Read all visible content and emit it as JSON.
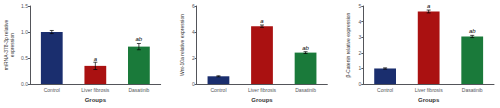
{
  "chart_data": [
    {
      "type": "bar",
      "ylabel": "miRNA-378-3p relative\nexpression",
      "xlabel": "Groups",
      "categories": [
        "Control",
        "Liver fibrosis",
        "Dasatinib"
      ],
      "values": [
        1.0,
        0.35,
        0.72
      ],
      "errors": [
        0.03,
        0.07,
        0.06
      ],
      "colors": [
        "#1a2e6e",
        "#aa1111",
        "#1a7a3a"
      ],
      "ylim": [
        0.0,
        1.5
      ],
      "yticks": [
        {
          "value": 0,
          "label": "0.0"
        },
        0.5,
        {
          "value": 1,
          "label": "1.0"
        },
        1.5
      ],
      "annotations": [
        {
          "text": "a",
          "x": "Liver fibrosis",
          "y": 0.43
        },
        {
          "text": "ab",
          "x": "Dasatinib",
          "y": 0.8
        }
      ],
      "grid": false
    },
    {
      "type": "bar",
      "ylabel": "Wnt-10a relative expression",
      "xlabel": "Groups",
      "categories": [
        "Control",
        "Liver fibrosis",
        "Dasatinib"
      ],
      "values": [
        0.6,
        4.45,
        2.42
      ],
      "errors": [
        0.04,
        0.09,
        0.07
      ],
      "colors": [
        "#1a2e6e",
        "#aa1111",
        "#1a7a3a"
      ],
      "ylim": [
        0,
        6
      ],
      "yticks": [
        0,
        2,
        4,
        6
      ],
      "annotations": [
        {
          "text": "a",
          "x": "Liver fibrosis",
          "y": 4.6
        },
        {
          "text": "ab",
          "x": "Dasatinib",
          "y": 2.55
        }
      ],
      "grid": false
    },
    {
      "type": "bar",
      "ylabel": "β-Catenin relative expression",
      "xlabel": "Groups",
      "categories": [
        "Control",
        "Liver fibrosis",
        "Dasatinib"
      ],
      "values": [
        1.0,
        4.65,
        3.05
      ],
      "errors": [
        0.04,
        0.09,
        0.07
      ],
      "colors": [
        "#1a2e6e",
        "#aa1111",
        "#1a7a3a"
      ],
      "ylim": [
        0,
        5
      ],
      "yticks": [
        0,
        1,
        2,
        3,
        4,
        5
      ],
      "annotations": [
        {
          "text": "a",
          "x": "Liver fibrosis",
          "y": 4.8
        },
        {
          "text": "ab",
          "x": "Dasatinib",
          "y": 3.18
        }
      ],
      "grid": false
    }
  ]
}
